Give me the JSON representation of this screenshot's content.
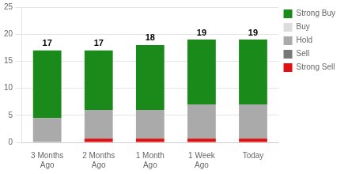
{
  "chart_data": {
    "type": "bar",
    "stacked": true,
    "categories": [
      "3 Months\nAgo",
      "2 Months\nAgo",
      "1 Month\nAgo",
      "1 Week\nAgo",
      "Today"
    ],
    "series": [
      {
        "name": "Strong Sell",
        "color": "#dd1111",
        "values": [
          0.0,
          0.7,
          0.7,
          0.7,
          0.7
        ]
      },
      {
        "name": "Sell",
        "color": "#777777",
        "values": [
          0.0,
          0.0,
          0.0,
          0.0,
          0.0
        ]
      },
      {
        "name": "Hold",
        "color": "#aaaaaa",
        "values": [
          4.5,
          5.3,
          5.3,
          6.3,
          6.3
        ]
      },
      {
        "name": "Buy",
        "color": "#dddddd",
        "values": [
          0.0,
          0.0,
          0.0,
          0.0,
          0.0
        ]
      },
      {
        "name": "Strong Buy",
        "color": "#1a8a1a",
        "values": [
          12.5,
          11.0,
          12.0,
          12.0,
          12.0
        ]
      }
    ],
    "totals": [
      17,
      17,
      18,
      19,
      19
    ],
    "ylim": [
      0,
      25
    ],
    "yticks": [
      0,
      5,
      10,
      15,
      20,
      25
    ],
    "grid": true,
    "legend": "right"
  }
}
